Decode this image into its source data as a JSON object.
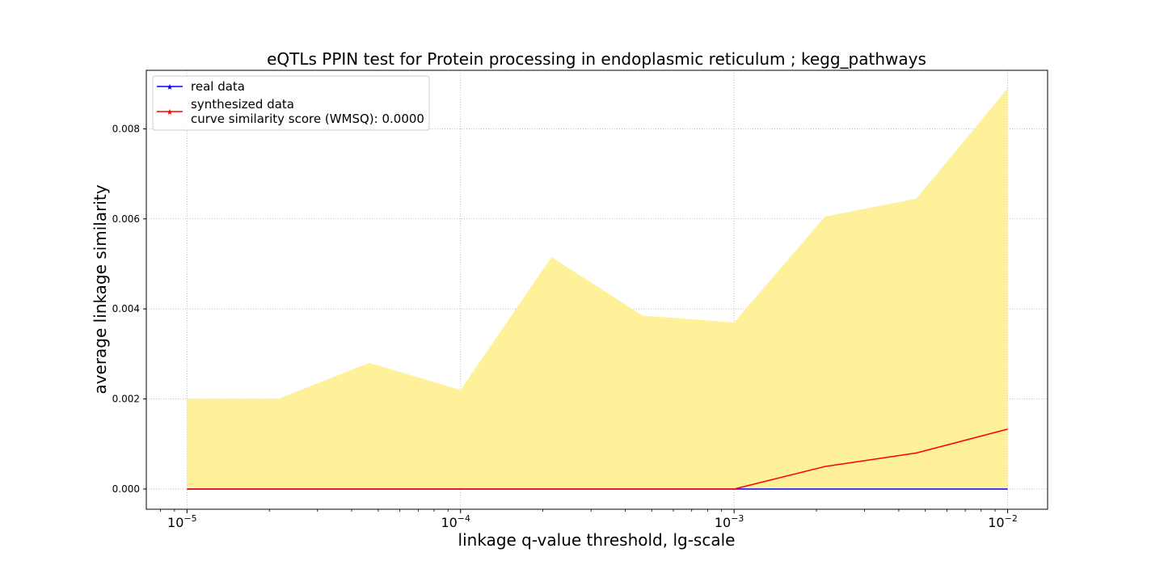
{
  "chart_data": {
    "type": "line",
    "title": "eQTLs PPIN test for Protein processing in endoplasmic reticulum ; kegg_pathways",
    "xlabel": "linkage q-value threshold, lg-scale",
    "ylabel": "average linkage similarity",
    "xscale": "log",
    "xlim": [
      7.1e-06,
      0.014
    ],
    "ylim": [
      -0.00045,
      0.0093
    ],
    "grid": true,
    "legend_placement": "upper-left",
    "x": [
      1e-05,
      2.15e-05,
      4.64e-05,
      0.0001,
      0.000215,
      0.000464,
      0.001,
      0.00215,
      0.00464,
      0.01
    ],
    "x_ticks": [
      {
        "value": 1e-05,
        "base": "10",
        "exp": "−5"
      },
      {
        "value": 0.0001,
        "base": "10",
        "exp": "−4"
      },
      {
        "value": 0.001,
        "base": "10",
        "exp": "−3"
      },
      {
        "value": 0.01,
        "base": "10",
        "exp": "−2"
      }
    ],
    "y_ticks": [
      "0.000",
      "0.002",
      "0.004",
      "0.006",
      "0.008"
    ],
    "y_tick_values": [
      0,
      0.002,
      0.004,
      0.006,
      0.008
    ],
    "band": {
      "color": "#fff09a",
      "upper": [
        0.002,
        0.002,
        0.0028,
        0.0022,
        0.00515,
        0.00385,
        0.0037,
        0.00605,
        0.00645,
        0.0089
      ],
      "lower": [
        0,
        0,
        0,
        0,
        0,
        0,
        0,
        0,
        0,
        0
      ]
    },
    "series": [
      {
        "name": "real data",
        "color": "#0000ff",
        "values": [
          0,
          0,
          0,
          0,
          0,
          0,
          0,
          0,
          0,
          0
        ]
      },
      {
        "name": "synthesized data",
        "color": "#ff0000",
        "values": [
          0,
          0,
          0,
          0,
          0,
          0,
          0,
          0.0005,
          0.0008,
          0.00133
        ]
      }
    ],
    "legend_extra": "curve similarity score (WMSQ): 0.0000"
  }
}
